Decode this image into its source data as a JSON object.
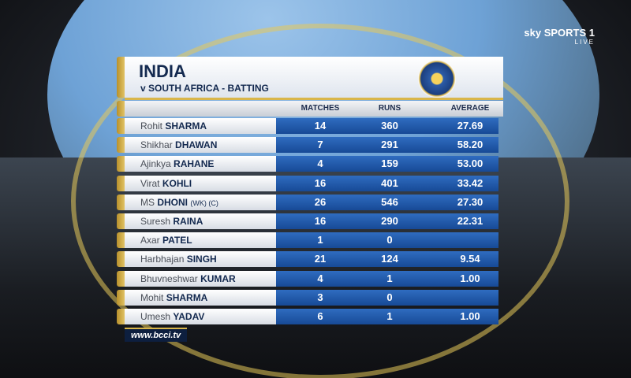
{
  "broadcaster": {
    "channel": "sky SPORTS 1",
    "status": "LIVE"
  },
  "header": {
    "title": "INDIA",
    "subtitle": "v SOUTH AFRICA - BATTING"
  },
  "table": {
    "columns": [
      "MATCHES",
      "RUNS",
      "AVERAGE"
    ],
    "rows": [
      {
        "first": "Rohit",
        "last": "SHARMA",
        "matches": 14,
        "runs": 360,
        "average": "27.69"
      },
      {
        "first": "Shikhar",
        "last": "DHAWAN",
        "matches": 7,
        "runs": 291,
        "average": "58.20"
      },
      {
        "first": "Ajinkya",
        "last": "RAHANE",
        "matches": 4,
        "runs": 159,
        "average": "53.00"
      },
      {
        "first": "Virat",
        "last": "KOHLI",
        "matches": 16,
        "runs": 401,
        "average": "33.42"
      },
      {
        "first": "MS",
        "last": "DHONI",
        "tag": "(WK) (C)",
        "matches": 26,
        "runs": 546,
        "average": "27.30"
      },
      {
        "first": "Suresh",
        "last": "RAINA",
        "matches": 16,
        "runs": 290,
        "average": "22.31"
      },
      {
        "first": "Axar",
        "last": "PATEL",
        "matches": 1,
        "runs": 0
      },
      {
        "first": "Harbhajan",
        "last": "SINGH",
        "matches": 21,
        "runs": 124,
        "average": "9.54"
      },
      {
        "first": "Bhuvneshwar",
        "last": "KUMAR",
        "matches": 4,
        "runs": 1,
        "average": "1.00"
      },
      {
        "first": "Mohit",
        "last": "SHARMA",
        "matches": 3,
        "runs": 0
      },
      {
        "first": "Umesh",
        "last": "YADAV",
        "matches": 6,
        "runs": 1,
        "average": "1.00"
      }
    ]
  },
  "footer": {
    "url": "www.bcci.tv"
  }
}
